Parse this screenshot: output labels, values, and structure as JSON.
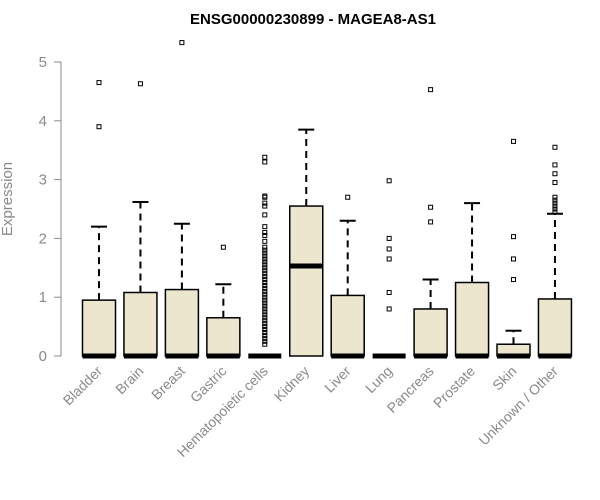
{
  "chart_data": {
    "type": "boxplot",
    "title": "ENSG00000230899 - MAGEA8-AS1",
    "ylabel": "Expression",
    "xlabel": "",
    "ylim": [
      0,
      5.35
    ],
    "yticks": [
      0,
      1,
      2,
      3,
      4,
      5
    ],
    "grid": false,
    "legend": "none",
    "colors": {
      "box_fill": "#ede6cf",
      "stroke": "#000000",
      "axis_text": "#8a8a8a"
    },
    "categories": [
      "Bladder",
      "Brain",
      "Breast",
      "Gastric",
      "Hematopoietic cells",
      "Kidney",
      "Liver",
      "Lung",
      "Pancreas",
      "Prostate",
      "Skin",
      "Unknown / Other"
    ],
    "boxes": [
      {
        "q1": 0,
        "median": 0,
        "q3": 0.95,
        "whisker_low": 0,
        "whisker_high": 2.2,
        "outliers": [
          3.9,
          4.65
        ]
      },
      {
        "q1": 0,
        "median": 0,
        "q3": 1.08,
        "whisker_low": 0,
        "whisker_high": 2.62,
        "outliers": [
          4.63
        ]
      },
      {
        "q1": 0,
        "median": 0,
        "q3": 1.13,
        "whisker_low": 0,
        "whisker_high": 2.25,
        "outliers": [
          5.33
        ]
      },
      {
        "q1": 0,
        "median": 0,
        "q3": 0.65,
        "whisker_low": 0,
        "whisker_high": 1.22,
        "outliers": [
          1.85
        ]
      },
      {
        "q1": 0,
        "median": 0,
        "q3": 0,
        "whisker_low": 0,
        "whisker_high": 0,
        "outliers": [
          0.2,
          0.25,
          0.3,
          0.35,
          0.4,
          0.45,
          0.5,
          0.55,
          0.6,
          0.65,
          0.7,
          0.75,
          0.8,
          0.85,
          0.9,
          0.95,
          1.0,
          1.05,
          1.1,
          1.15,
          1.2,
          1.25,
          1.3,
          1.35,
          1.4,
          1.45,
          1.5,
          1.55,
          1.6,
          1.65,
          1.7,
          1.75,
          1.8,
          1.85,
          1.95,
          2.05,
          2.1,
          2.2,
          2.4,
          2.55,
          2.6,
          2.7,
          2.72,
          3.3,
          3.38
        ]
      },
      {
        "q1": 0,
        "median": 1.53,
        "q3": 2.55,
        "whisker_low": 0,
        "whisker_high": 3.85,
        "outliers": []
      },
      {
        "q1": 0,
        "median": 0,
        "q3": 1.03,
        "whisker_low": 0,
        "whisker_high": 2.3,
        "outliers": [
          2.7
        ]
      },
      {
        "q1": 0,
        "median": 0,
        "q3": 0,
        "whisker_low": 0,
        "whisker_high": 0,
        "outliers": [
          0.8,
          1.08,
          1.65,
          1.82,
          2.0,
          2.98
        ]
      },
      {
        "q1": 0,
        "median": 0,
        "q3": 0.8,
        "whisker_low": 0,
        "whisker_high": 1.3,
        "outliers": [
          2.28,
          2.53,
          4.53
        ]
      },
      {
        "q1": 0,
        "median": 0,
        "q3": 1.25,
        "whisker_low": 0,
        "whisker_high": 2.6,
        "outliers": []
      },
      {
        "q1": 0,
        "median": 0,
        "q3": 0.2,
        "whisker_low": 0,
        "whisker_high": 0.43,
        "outliers": [
          1.3,
          1.65,
          2.03,
          3.65
        ]
      },
      {
        "q1": 0,
        "median": 0,
        "q3": 0.97,
        "whisker_low": 0,
        "whisker_high": 2.42,
        "outliers": [
          2.45,
          2.5,
          2.55,
          2.6,
          2.65,
          2.7,
          2.95,
          3.1,
          3.25,
          3.55
        ]
      }
    ]
  }
}
